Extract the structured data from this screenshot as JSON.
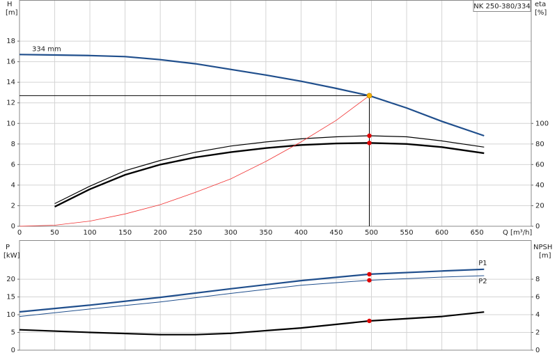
{
  "chart_data": [
    {
      "type": "line",
      "title": "NK 250-380/334",
      "ylabel": "H",
      "yunit": "[m]",
      "y2label": "eta",
      "y2unit": "[%]",
      "xlabel": "Q [m³/h]",
      "xlim": [
        0,
        727
      ],
      "xticks": [
        0,
        50,
        100,
        150,
        200,
        250,
        300,
        350,
        400,
        450,
        500,
        550,
        600,
        650
      ],
      "ylim": [
        0,
        22
      ],
      "yticks": [
        0,
        2,
        4,
        6,
        8,
        10,
        12,
        14,
        16,
        18
      ],
      "y2lim": [
        0,
        220
      ],
      "y2ticks": [
        0,
        20,
        40,
        60,
        80,
        100
      ],
      "grid": true,
      "operating_point": {
        "x": 497,
        "y": 12.7,
        "color": "#f5b400"
      },
      "series": [
        {
          "name": "334 mm",
          "color": "#1f4e8c",
          "width": 2.2,
          "x": [
            0,
            50,
            100,
            150,
            200,
            250,
            300,
            350,
            400,
            450,
            497,
            550,
            600,
            660
          ],
          "values": [
            16.7,
            16.65,
            16.6,
            16.5,
            16.2,
            15.8,
            15.25,
            14.7,
            14.1,
            13.4,
            12.7,
            11.5,
            10.2,
            8.8
          ]
        },
        {
          "color": "#000000",
          "width": 1.2,
          "axis": "y2",
          "marker_color": "#e00000",
          "x": [
            50,
            100,
            150,
            200,
            250,
            300,
            350,
            400,
            450,
            497,
            550,
            600,
            660
          ],
          "values": [
            22,
            39,
            54,
            64,
            72,
            78,
            82,
            85,
            87,
            88,
            87,
            83,
            77
          ]
        },
        {
          "color": "#000000",
          "width": 2.4,
          "axis": "y2",
          "marker_color": "#e00000",
          "x": [
            50,
            100,
            150,
            200,
            250,
            300,
            350,
            400,
            450,
            497,
            550,
            600,
            660
          ],
          "values": [
            19,
            36,
            50,
            60,
            67,
            72,
            76,
            79,
            80.5,
            81,
            80,
            77,
            71
          ]
        },
        {
          "color": "#f03030",
          "width": 0.8,
          "x": [
            0,
            50,
            100,
            150,
            200,
            250,
            300,
            350,
            400,
            450,
            497
          ],
          "values": [
            0,
            0.1,
            0.5,
            1.2,
            2.1,
            3.3,
            4.6,
            6.3,
            8.2,
            10.3,
            12.7
          ]
        }
      ]
    },
    {
      "type": "line",
      "ylabel": "P",
      "yunit": "[kW]",
      "y2label": "NPSH",
      "y2unit": "[m]",
      "xlim": [
        0,
        727
      ],
      "ylim": [
        0,
        31
      ],
      "yticks": [
        0,
        5,
        10,
        15,
        20
      ],
      "y2lim": [
        0,
        12.4
      ],
      "y2ticks": [
        0,
        2,
        4,
        6,
        8
      ],
      "grid": true,
      "marker_x": 497,
      "series": [
        {
          "name": "P1",
          "color": "#1f4e8c",
          "width": 2.2,
          "marker_color": "#e00000",
          "x": [
            0,
            100,
            200,
            300,
            400,
            497,
            600,
            660
          ],
          "values": [
            10.8,
            12.7,
            14.9,
            17.3,
            19.6,
            21.4,
            22.3,
            22.8
          ]
        },
        {
          "name": "P2",
          "color": "#1f4e8c",
          "width": 1,
          "marker_color": "#e00000",
          "x": [
            0,
            100,
            200,
            300,
            400,
            497,
            600,
            660
          ],
          "values": [
            9.5,
            11.6,
            13.6,
            16,
            18.3,
            19.7,
            20.6,
            21
          ]
        },
        {
          "color": "#000000",
          "width": 2.2,
          "axis": "y2",
          "marker_color": "#e00000",
          "x": [
            0,
            100,
            200,
            250,
            300,
            400,
            497,
            600,
            660
          ],
          "values": [
            2.3,
            2.0,
            1.75,
            1.75,
            1.9,
            2.5,
            3.3,
            3.8,
            4.3
          ]
        }
      ]
    }
  ]
}
